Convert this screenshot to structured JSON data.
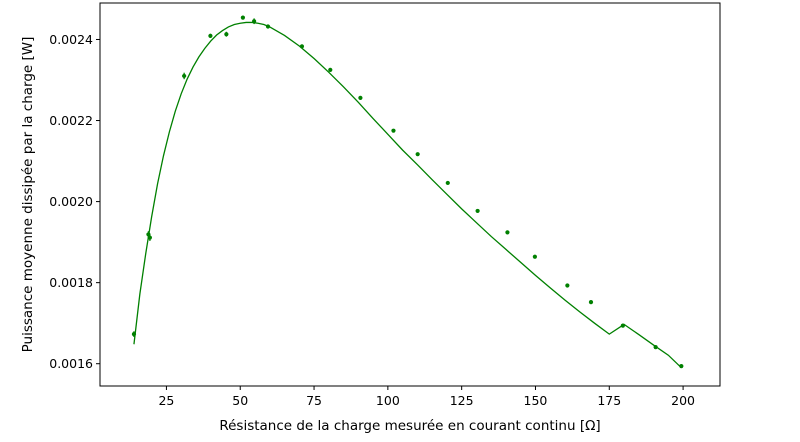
{
  "chart_data": {
    "type": "scatter",
    "title": "",
    "xlabel": "Résistance de la charge mesurée en courant continu [Ω]",
    "ylabel": "Puissance moyenne dissipée par la charge [W]",
    "xlim": [
      2.5,
      212.5
    ],
    "ylim": [
      0.001545,
      0.00249
    ],
    "x_ticks": [
      25,
      50,
      75,
      100,
      125,
      150,
      175,
      200
    ],
    "x_tick_labels": [
      "25",
      "50",
      "75",
      "100",
      "125",
      "150",
      "175",
      "200"
    ],
    "y_ticks": [
      0.0016,
      0.0018,
      0.002,
      0.0022,
      0.0024
    ],
    "y_tick_labels": [
      "0.0016",
      "0.0018",
      "0.0020",
      "0.0022",
      "0.0024"
    ],
    "grid": false,
    "legend": "none",
    "color": "#008000",
    "series": [
      {
        "kind": "points-with-errorbars",
        "x": [
          14.0,
          18.9,
          19.4,
          31.0,
          39.9,
          45.3,
          50.9,
          54.7,
          59.4,
          70.9,
          80.5,
          90.7,
          101.9,
          110.1,
          120.3,
          130.4,
          140.5,
          149.8,
          160.8,
          168.8,
          179.6,
          190.7,
          199.4
        ],
        "y": [
          0.001673,
          0.001919,
          0.001911,
          0.00231,
          0.002409,
          0.002413,
          0.002454,
          0.002445,
          0.002432,
          0.002383,
          0.002325,
          0.002256,
          0.002175,
          0.002117,
          0.002046,
          0.001977,
          0.001924,
          0.001864,
          0.001793,
          0.001752,
          0.001694,
          0.001641,
          0.001594
        ],
        "yerr": [
          7e-06,
          8e-06,
          8e-06,
          8e-06,
          5e-06,
          6e-06,
          4e-06,
          7e-06,
          4e-06,
          4e-06,
          3e-06,
          3e-06,
          3e-06,
          3e-06,
          3e-06,
          3e-06,
          3e-06,
          3e-06,
          3e-06,
          3e-06,
          3e-06,
          3e-06,
          3e-06
        ]
      },
      {
        "kind": "fit-line",
        "x": [
          14,
          16,
          18,
          20,
          22,
          24,
          26,
          28,
          30,
          32,
          34,
          36,
          38,
          40,
          42,
          44,
          46,
          48,
          50,
          52,
          54,
          56,
          58,
          60,
          65,
          70,
          75,
          80,
          85,
          90,
          95,
          100,
          105,
          110,
          115,
          120,
          125,
          130,
          135,
          140,
          145,
          150,
          155,
          160,
          165,
          170,
          175,
          180,
          185,
          190,
          195,
          199
        ],
        "y": [
          0.001648,
          0.001772,
          0.001872,
          0.001963,
          0.002044,
          0.002113,
          0.002172,
          0.002223,
          0.002266,
          0.002302,
          0.002332,
          0.002357,
          0.002378,
          0.002396,
          0.002411,
          0.002422,
          0.002431,
          0.002437,
          0.00244,
          0.002442,
          0.002442,
          0.00244,
          0.002437,
          0.002431,
          0.00241,
          0.002384,
          0.002353,
          0.002319,
          0.002283,
          0.002245,
          0.002205,
          0.002166,
          0.002127,
          0.002091,
          0.002054,
          0.002018,
          0.001982,
          0.001948,
          0.001914,
          0.001882,
          0.00185,
          0.001818,
          0.001787,
          0.001757,
          0.001728,
          0.0017,
          0.001673,
          0.001697,
          0.001672,
          0.001646,
          0.001621,
          0.001593
        ]
      }
    ]
  }
}
